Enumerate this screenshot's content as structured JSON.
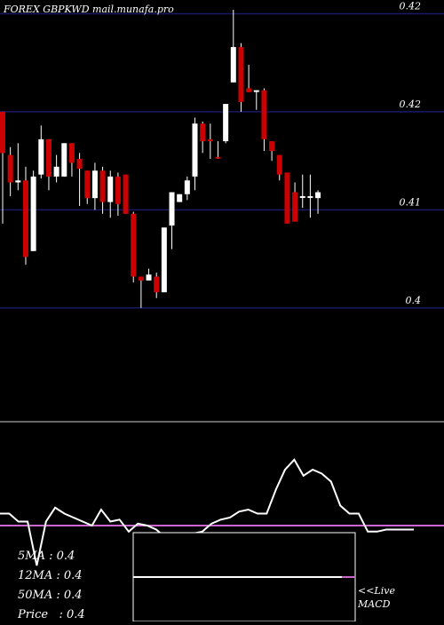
{
  "header": {
    "title": "FOREX  GBPKWD mail.munafa.pro"
  },
  "chart_data": [
    {
      "type": "candlestick",
      "title": "FOREX  GBPKWD mail.munafa.pro",
      "ylim": [
        0.402,
        0.4235
      ],
      "y_tick_labels": [
        {
          "value": 0.4228,
          "label": "0.42"
        },
        {
          "value": 0.4178,
          "label": "0.42"
        },
        {
          "value": 0.4128,
          "label": "0.41"
        },
        {
          "value": 0.4078,
          "label": "0.4"
        }
      ],
      "grid": true,
      "candles": [
        {
          "o": 0.4178,
          "h": 0.4178,
          "l": 0.4121,
          "c": 0.4157,
          "color": "red"
        },
        {
          "o": 0.4156,
          "h": 0.416,
          "l": 0.4135,
          "c": 0.4142,
          "color": "red"
        },
        {
          "o": 0.4142,
          "h": 0.4162,
          "l": 0.4138,
          "c": 0.4143,
          "color": "white"
        },
        {
          "o": 0.4143,
          "h": 0.415,
          "l": 0.41,
          "c": 0.4104,
          "color": "red"
        },
        {
          "o": 0.4107,
          "h": 0.4148,
          "l": 0.4107,
          "c": 0.4145,
          "color": "white"
        },
        {
          "o": 0.4146,
          "h": 0.4171,
          "l": 0.4144,
          "c": 0.4164,
          "color": "white"
        },
        {
          "o": 0.4164,
          "h": 0.4164,
          "l": 0.4138,
          "c": 0.4145,
          "color": "red"
        },
        {
          "o": 0.4145,
          "h": 0.4156,
          "l": 0.4142,
          "c": 0.415,
          "color": "white"
        },
        {
          "o": 0.4145,
          "h": 0.4162,
          "l": 0.4145,
          "c": 0.4162,
          "color": "white"
        },
        {
          "o": 0.4162,
          "h": 0.4162,
          "l": 0.4145,
          "c": 0.4152,
          "color": "red"
        },
        {
          "o": 0.4154,
          "h": 0.4157,
          "l": 0.413,
          "c": 0.4149,
          "color": "red"
        },
        {
          "o": 0.4148,
          "h": 0.4148,
          "l": 0.4131,
          "c": 0.4134,
          "color": "red"
        },
        {
          "o": 0.4134,
          "h": 0.4152,
          "l": 0.4128,
          "c": 0.4148,
          "color": "white"
        },
        {
          "o": 0.4148,
          "h": 0.415,
          "l": 0.4126,
          "c": 0.4132,
          "color": "red"
        },
        {
          "o": 0.4132,
          "h": 0.4148,
          "l": 0.4124,
          "c": 0.4145,
          "color": "white"
        },
        {
          "o": 0.4145,
          "h": 0.4147,
          "l": 0.4125,
          "c": 0.4131,
          "color": "red"
        },
        {
          "o": 0.4146,
          "h": 0.4146,
          "l": 0.4126,
          "c": 0.4126,
          "color": "red"
        },
        {
          "o": 0.4126,
          "h": 0.4127,
          "l": 0.4091,
          "c": 0.4094,
          "color": "red"
        },
        {
          "o": 0.4094,
          "h": 0.4094,
          "l": 0.4078,
          "c": 0.4092,
          "color": "red"
        },
        {
          "o": 0.4092,
          "h": 0.4098,
          "l": 0.4092,
          "c": 0.4095,
          "color": "white"
        },
        {
          "o": 0.4094,
          "h": 0.4096,
          "l": 0.4083,
          "c": 0.4086,
          "color": "red"
        },
        {
          "o": 0.4086,
          "h": 0.4119,
          "l": 0.4086,
          "c": 0.4119,
          "color": "white"
        },
        {
          "o": 0.412,
          "h": 0.4137,
          "l": 0.4108,
          "c": 0.4137,
          "color": "white"
        },
        {
          "o": 0.4132,
          "h": 0.4136,
          "l": 0.4132,
          "c": 0.4136,
          "color": "white"
        },
        {
          "o": 0.4136,
          "h": 0.4145,
          "l": 0.4133,
          "c": 0.4143,
          "color": "white"
        },
        {
          "o": 0.4145,
          "h": 0.4175,
          "l": 0.4138,
          "c": 0.4172,
          "color": "white"
        },
        {
          "o": 0.4172,
          "h": 0.4173,
          "l": 0.4157,
          "c": 0.4163,
          "color": "red"
        },
        {
          "o": 0.4163,
          "h": 0.4172,
          "l": 0.4154,
          "c": 0.4164,
          "color": "red"
        },
        {
          "o": 0.4155,
          "h": 0.4163,
          "l": 0.4154,
          "c": 0.4155,
          "color": "red"
        },
        {
          "o": 0.4163,
          "h": 0.4182,
          "l": 0.4162,
          "c": 0.4182,
          "color": "white"
        },
        {
          "o": 0.4193,
          "h": 0.423,
          "l": 0.4193,
          "c": 0.4211,
          "color": "white"
        },
        {
          "o": 0.4211,
          "h": 0.4213,
          "l": 0.4178,
          "c": 0.4183,
          "color": "red"
        },
        {
          "o": 0.419,
          "h": 0.4202,
          "l": 0.4188,
          "c": 0.4188,
          "color": "red"
        },
        {
          "o": 0.4189,
          "h": 0.4189,
          "l": 0.4179,
          "c": 0.4189,
          "color": "white"
        },
        {
          "o": 0.4189,
          "h": 0.419,
          "l": 0.4158,
          "c": 0.4164,
          "color": "red"
        },
        {
          "o": 0.4163,
          "h": 0.4163,
          "l": 0.4153,
          "c": 0.4158,
          "color": "red"
        },
        {
          "o": 0.4156,
          "h": 0.4156,
          "l": 0.4143,
          "c": 0.4146,
          "color": "red"
        },
        {
          "o": 0.4147,
          "h": 0.4147,
          "l": 0.4121,
          "c": 0.4121,
          "color": "red"
        },
        {
          "o": 0.4137,
          "h": 0.4142,
          "l": 0.4122,
          "c": 0.4122,
          "color": "red"
        },
        {
          "o": 0.4135,
          "h": 0.4146,
          "l": 0.4129,
          "c": 0.4135,
          "color": "white"
        },
        {
          "o": 0.4135,
          "h": 0.4146,
          "l": 0.4124,
          "c": 0.4135,
          "color": "white"
        },
        {
          "o": 0.4134,
          "h": 0.4138,
          "l": 0.4126,
          "c": 0.4137,
          "color": "white"
        }
      ],
      "colors": {
        "up": "#ffffff",
        "down": "#cc0000",
        "grid": "#1a1a66",
        "separator": "#cccccc"
      }
    },
    {
      "type": "line",
      "indicator": "MACD",
      "values": [
        54,
        54,
        50,
        50,
        28,
        50,
        57,
        54,
        52,
        50,
        48,
        56,
        50,
        51,
        45,
        49,
        48,
        46,
        42,
        42,
        44,
        44,
        45,
        49,
        51,
        52,
        55,
        56,
        54,
        54,
        66,
        76,
        81,
        73,
        76,
        74,
        70,
        58,
        54,
        54,
        45,
        45,
        46,
        46,
        46,
        46
      ],
      "signal_level": 48,
      "colors": {
        "macd": "#ffffff",
        "signal": "#cc66cc"
      }
    }
  ],
  "moving_averages": [
    {
      "label": "5MA",
      "value": "0.4"
    },
    {
      "label": "12MA",
      "value": "0.4"
    },
    {
      "label": "50MA",
      "value": "0.4"
    },
    {
      "label": "Price",
      "value": "0.4"
    }
  ],
  "live_panel": {
    "line1": "<<Live",
    "line2": "MACD"
  }
}
